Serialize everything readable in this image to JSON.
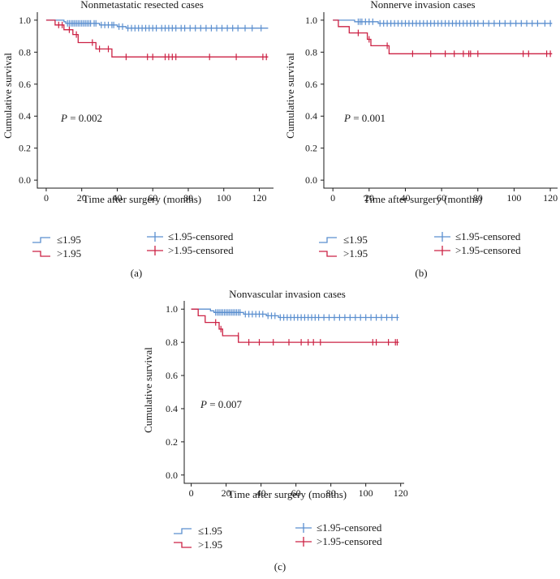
{
  "colors": {
    "low": "#5b8fcf",
    "high": "#cc2244"
  },
  "chart_data": [
    {
      "type": "line",
      "panel_label": "(a)",
      "title": "Nonmetastatic resected cases",
      "xlabel": "Time after surgery (months)",
      "ylabel": "Cumulative survival",
      "xlim": [
        -5,
        128
      ],
      "ylim": [
        -0.05,
        1.05
      ],
      "xticks": [
        0,
        20,
        40,
        60,
        80,
        100,
        120
      ],
      "yticks": [
        0.0,
        0.2,
        0.4,
        0.6,
        0.8,
        1.0
      ],
      "p_label": "P",
      "p_value": " = 0.002",
      "legend": {
        "line_low": "≤1.95",
        "line_high": ">1.95",
        "censor_low": "≤1.95-censored",
        "censor_high": ">1.95-censored"
      },
      "series": [
        {
          "name": "≤1.95",
          "color_key": "low",
          "steps": [
            [
              0,
              1.0
            ],
            [
              10,
              0.99
            ],
            [
              11,
              0.98
            ],
            [
              30,
              0.97
            ],
            [
              40,
              0.96
            ],
            [
              45,
              0.95
            ],
            [
              125,
              0.95
            ]
          ],
          "censored": [
            [
              12,
              0.98
            ],
            [
              13,
              0.98
            ],
            [
              14,
              0.98
            ],
            [
              15,
              0.98
            ],
            [
              16,
              0.98
            ],
            [
              17,
              0.98
            ],
            [
              18,
              0.98
            ],
            [
              19,
              0.98
            ],
            [
              20,
              0.98
            ],
            [
              21,
              0.98
            ],
            [
              22,
              0.98
            ],
            [
              23,
              0.98
            ],
            [
              24,
              0.98
            ],
            [
              25,
              0.98
            ],
            [
              27,
              0.98
            ],
            [
              28,
              0.98
            ],
            [
              31,
              0.97
            ],
            [
              33,
              0.97
            ],
            [
              35,
              0.97
            ],
            [
              37,
              0.97
            ],
            [
              38,
              0.97
            ],
            [
              41,
              0.96
            ],
            [
              43,
              0.96
            ],
            [
              46,
              0.95
            ],
            [
              48,
              0.95
            ],
            [
              50,
              0.95
            ],
            [
              52,
              0.95
            ],
            [
              54,
              0.95
            ],
            [
              56,
              0.95
            ],
            [
              58,
              0.95
            ],
            [
              60,
              0.95
            ],
            [
              62,
              0.95
            ],
            [
              65,
              0.95
            ],
            [
              67,
              0.95
            ],
            [
              69,
              0.95
            ],
            [
              71,
              0.95
            ],
            [
              73,
              0.95
            ],
            [
              76,
              0.95
            ],
            [
              78,
              0.95
            ],
            [
              81,
              0.95
            ],
            [
              84,
              0.95
            ],
            [
              87,
              0.95
            ],
            [
              90,
              0.95
            ],
            [
              93,
              0.95
            ],
            [
              96,
              0.95
            ],
            [
              99,
              0.95
            ],
            [
              102,
              0.95
            ],
            [
              105,
              0.95
            ],
            [
              108,
              0.95
            ],
            [
              112,
              0.95
            ],
            [
              116,
              0.95
            ],
            [
              121,
              0.95
            ]
          ]
        },
        {
          "name": ">1.95",
          "color_key": "high",
          "steps": [
            [
              0,
              1.0
            ],
            [
              5,
              0.97
            ],
            [
              10,
              0.94
            ],
            [
              15,
              0.91
            ],
            [
              18,
              0.86
            ],
            [
              28,
              0.82
            ],
            [
              37,
              0.77
            ],
            [
              125,
              0.77
            ]
          ],
          "censored": [
            [
              7,
              0.97
            ],
            [
              9,
              0.97
            ],
            [
              13,
              0.94
            ],
            [
              17,
              0.91
            ],
            [
              26,
              0.86
            ],
            [
              30,
              0.82
            ],
            [
              35,
              0.82
            ],
            [
              45,
              0.77
            ],
            [
              57,
              0.77
            ],
            [
              60,
              0.77
            ],
            [
              67,
              0.77
            ],
            [
              69,
              0.77
            ],
            [
              71,
              0.77
            ],
            [
              73,
              0.77
            ],
            [
              92,
              0.77
            ],
            [
              107,
              0.77
            ],
            [
              122,
              0.77
            ],
            [
              124,
              0.77
            ]
          ]
        }
      ]
    },
    {
      "type": "line",
      "panel_label": "(b)",
      "title": "Nonnerve invasion cases",
      "xlabel": "Time after surgery (months)",
      "ylabel": "Cumulative survival",
      "xlim": [
        -5,
        124
      ],
      "ylim": [
        -0.05,
        1.05
      ],
      "xticks": [
        0,
        20,
        40,
        60,
        80,
        100,
        120
      ],
      "yticks": [
        0.0,
        0.2,
        0.4,
        0.6,
        0.8,
        1.0
      ],
      "p_label": "P",
      "p_value": " = 0.001",
      "legend": {
        "line_low": "≤1.95",
        "line_high": ">1.95",
        "censor_low": "≤1.95-censored",
        "censor_high": ">1.95-censored"
      },
      "series": [
        {
          "name": "≤1.95",
          "color_key": "low",
          "steps": [
            [
              0,
              1.0
            ],
            [
              12,
              0.99
            ],
            [
              25,
              0.98
            ],
            [
              121,
              0.98
            ]
          ],
          "censored": [
            [
              14,
              0.99
            ],
            [
              15,
              0.99
            ],
            [
              16,
              0.99
            ],
            [
              18,
              0.99
            ],
            [
              20,
              0.99
            ],
            [
              22,
              0.99
            ],
            [
              26,
              0.98
            ],
            [
              28,
              0.98
            ],
            [
              30,
              0.98
            ],
            [
              32,
              0.98
            ],
            [
              34,
              0.98
            ],
            [
              36,
              0.98
            ],
            [
              38,
              0.98
            ],
            [
              40,
              0.98
            ],
            [
              42,
              0.98
            ],
            [
              44,
              0.98
            ],
            [
              46,
              0.98
            ],
            [
              48,
              0.98
            ],
            [
              50,
              0.98
            ],
            [
              52,
              0.98
            ],
            [
              54,
              0.98
            ],
            [
              56,
              0.98
            ],
            [
              58,
              0.98
            ],
            [
              60,
              0.98
            ],
            [
              62,
              0.98
            ],
            [
              64,
              0.98
            ],
            [
              66,
              0.98
            ],
            [
              68,
              0.98
            ],
            [
              70,
              0.98
            ],
            [
              72,
              0.98
            ],
            [
              74,
              0.98
            ],
            [
              76,
              0.98
            ],
            [
              78,
              0.98
            ],
            [
              80,
              0.98
            ],
            [
              83,
              0.98
            ],
            [
              86,
              0.98
            ],
            [
              89,
              0.98
            ],
            [
              92,
              0.98
            ],
            [
              95,
              0.98
            ],
            [
              98,
              0.98
            ],
            [
              101,
              0.98
            ],
            [
              104,
              0.98
            ],
            [
              107,
              0.98
            ],
            [
              110,
              0.98
            ],
            [
              113,
              0.98
            ],
            [
              117,
              0.98
            ],
            [
              120,
              0.98
            ]
          ]
        },
        {
          "name": ">1.95",
          "color_key": "high",
          "steps": [
            [
              0,
              1.0
            ],
            [
              3,
              0.96
            ],
            [
              9,
              0.92
            ],
            [
              19,
              0.88
            ],
            [
              21,
              0.84
            ],
            [
              31,
              0.79
            ],
            [
              121,
              0.79
            ]
          ],
          "censored": [
            [
              14,
              0.92
            ],
            [
              20,
              0.88
            ],
            [
              30,
              0.84
            ],
            [
              44,
              0.79
            ],
            [
              54,
              0.79
            ],
            [
              62,
              0.79
            ],
            [
              67,
              0.79
            ],
            [
              72,
              0.79
            ],
            [
              75,
              0.79
            ],
            [
              76,
              0.79
            ],
            [
              80,
              0.79
            ],
            [
              105,
              0.79
            ],
            [
              108,
              0.79
            ],
            [
              118,
              0.79
            ],
            [
              120,
              0.79
            ]
          ]
        }
      ]
    },
    {
      "type": "line",
      "panel_label": "(c)",
      "title": "Nonvascular invasion cases",
      "xlabel": "Time after surgery (months)",
      "ylabel": "Cumulative survival",
      "xlim": [
        -4,
        122
      ],
      "ylim": [
        -0.05,
        1.05
      ],
      "xticks": [
        0,
        20,
        40,
        60,
        80,
        100,
        120
      ],
      "yticks": [
        0.0,
        0.2,
        0.4,
        0.6,
        0.8,
        1.0
      ],
      "p_label": "P",
      "p_value": " = 0.007",
      "legend": {
        "line_low": "≤1.95",
        "line_high": ">1.95",
        "censor_low": "≤1.95-censored",
        "censor_high": ">1.95-censored"
      },
      "series": [
        {
          "name": "≤1.95",
          "color_key": "low",
          "steps": [
            [
              0,
              1.0
            ],
            [
              11,
              0.99
            ],
            [
              13,
              0.98
            ],
            [
              30,
              0.97
            ],
            [
              43,
              0.96
            ],
            [
              50,
              0.95
            ],
            [
              119,
              0.95
            ]
          ],
          "censored": [
            [
              14,
              0.98
            ],
            [
              15,
              0.98
            ],
            [
              16,
              0.98
            ],
            [
              17,
              0.98
            ],
            [
              18,
              0.98
            ],
            [
              19,
              0.98
            ],
            [
              20,
              0.98
            ],
            [
              21,
              0.98
            ],
            [
              22,
              0.98
            ],
            [
              23,
              0.98
            ],
            [
              24,
              0.98
            ],
            [
              25,
              0.98
            ],
            [
              26,
              0.98
            ],
            [
              27,
              0.98
            ],
            [
              28,
              0.98
            ],
            [
              31,
              0.97
            ],
            [
              33,
              0.97
            ],
            [
              35,
              0.97
            ],
            [
              37,
              0.97
            ],
            [
              39,
              0.97
            ],
            [
              41,
              0.97
            ],
            [
              44,
              0.96
            ],
            [
              46,
              0.96
            ],
            [
              48,
              0.96
            ],
            [
              51,
              0.95
            ],
            [
              53,
              0.95
            ],
            [
              55,
              0.95
            ],
            [
              57,
              0.95
            ],
            [
              59,
              0.95
            ],
            [
              61,
              0.95
            ],
            [
              63,
              0.95
            ],
            [
              65,
              0.95
            ],
            [
              67,
              0.95
            ],
            [
              69,
              0.95
            ],
            [
              71,
              0.95
            ],
            [
              73,
              0.95
            ],
            [
              76,
              0.95
            ],
            [
              79,
              0.95
            ],
            [
              82,
              0.95
            ],
            [
              85,
              0.95
            ],
            [
              88,
              0.95
            ],
            [
              91,
              0.95
            ],
            [
              94,
              0.95
            ],
            [
              97,
              0.95
            ],
            [
              100,
              0.95
            ],
            [
              103,
              0.95
            ],
            [
              106,
              0.95
            ],
            [
              109,
              0.95
            ],
            [
              112,
              0.95
            ],
            [
              115,
              0.95
            ],
            [
              118,
              0.95
            ]
          ]
        },
        {
          "name": ">1.95",
          "color_key": "high",
          "steps": [
            [
              0,
              1.0
            ],
            [
              4,
              0.96
            ],
            [
              8,
              0.92
            ],
            [
              16,
              0.88
            ],
            [
              18,
              0.84
            ],
            [
              27,
              0.8
            ],
            [
              119,
              0.8
            ]
          ],
          "censored": [
            [
              14,
              0.92
            ],
            [
              17,
              0.88
            ],
            [
              27,
              0.84
            ],
            [
              33,
              0.8
            ],
            [
              39,
              0.8
            ],
            [
              47,
              0.8
            ],
            [
              56,
              0.8
            ],
            [
              63,
              0.8
            ],
            [
              67,
              0.8
            ],
            [
              70,
              0.8
            ],
            [
              74,
              0.8
            ],
            [
              104,
              0.8
            ],
            [
              106,
              0.8
            ],
            [
              113,
              0.8
            ],
            [
              117,
              0.8
            ],
            [
              118,
              0.8
            ]
          ]
        }
      ]
    }
  ]
}
